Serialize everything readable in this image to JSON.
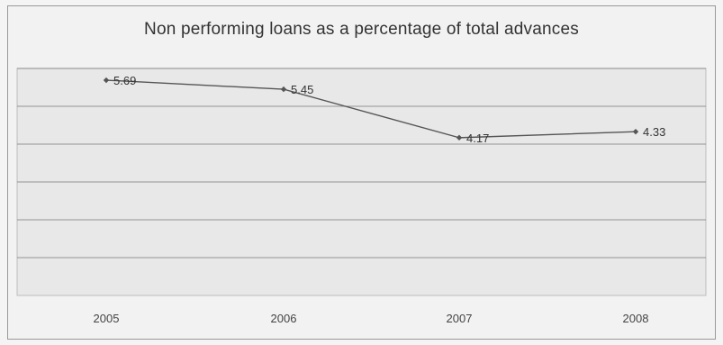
{
  "chart_data": {
    "type": "line",
    "title": "Non performing loans as  a percentage of total advances",
    "categories": [
      "2005",
      "2006",
      "2007",
      "2008"
    ],
    "series": [
      {
        "values": [
          5.69,
          5.45,
          4.17,
          4.33
        ],
        "data_labels": [
          "5.69",
          "5.45",
          "4.17",
          "4.33"
        ]
      }
    ],
    "xlabel": "",
    "ylabel": "",
    "ylim": [
      0,
      6
    ],
    "grid": true,
    "legend": "none",
    "colors": {
      "line": "#555555",
      "marker": "#555555",
      "plot_bg": "#e8e8e8",
      "grid": "#7a7a7a"
    }
  }
}
